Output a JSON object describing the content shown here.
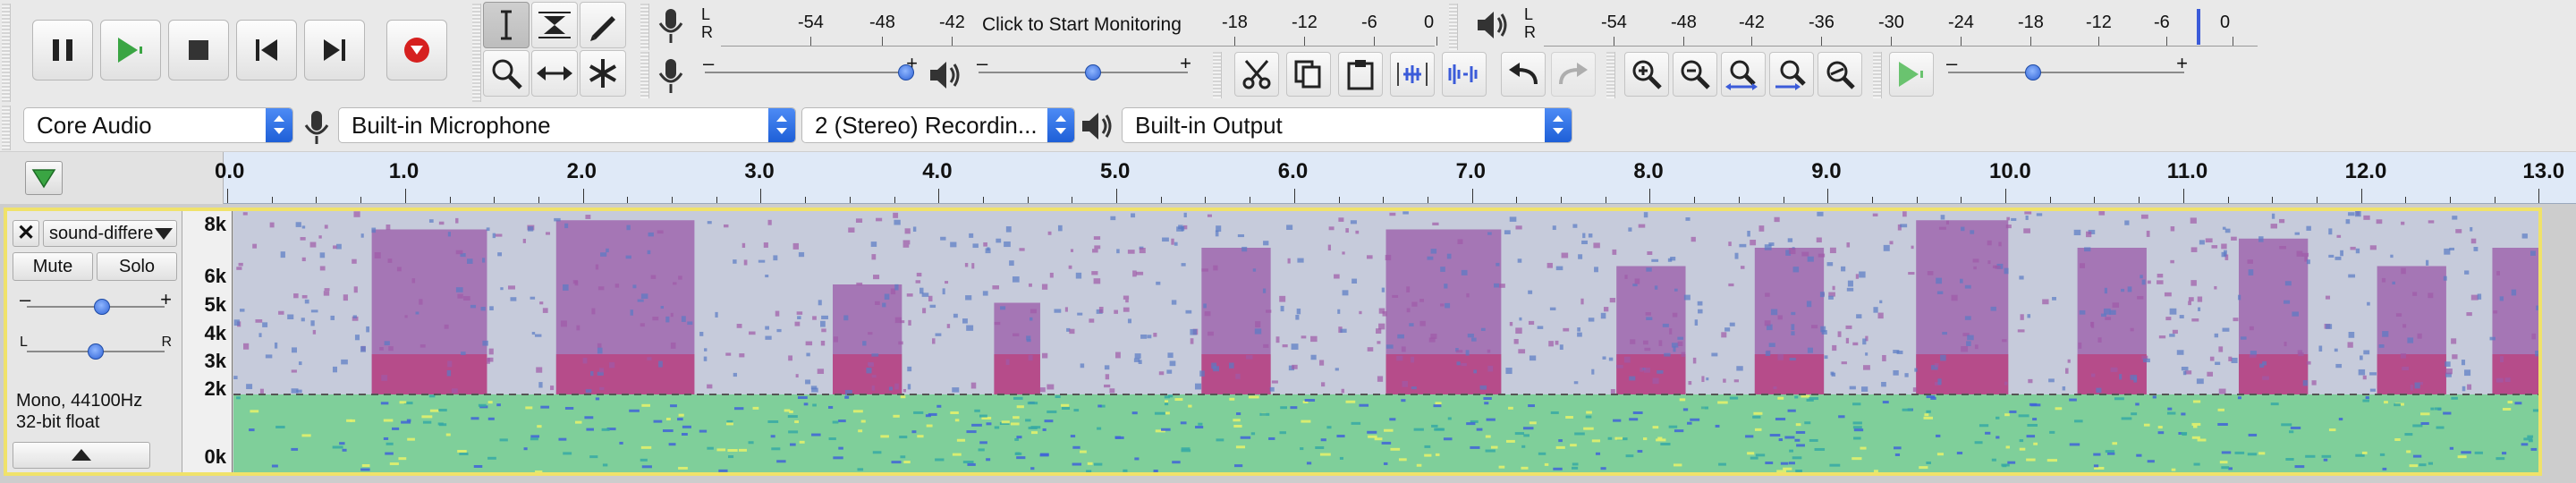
{
  "transport": {
    "buttons": [
      {
        "name": "pause-button",
        "icon": "pause-icon"
      },
      {
        "name": "play-button",
        "icon": "play-icon"
      },
      {
        "name": "stop-button",
        "icon": "stop-icon"
      },
      {
        "name": "skip-start-button",
        "icon": "skip-start-icon"
      },
      {
        "name": "skip-end-button",
        "icon": "skip-end-icon"
      },
      {
        "name": "record-button",
        "icon": "record-icon"
      }
    ]
  },
  "tools": [
    "selection-tool",
    "envelope-tool",
    "draw-tool",
    "zoom-tool",
    "time-shift-tool",
    "multi-tool"
  ],
  "record_meter": {
    "left_label": "L",
    "right_label": "R",
    "ticks": [
      "-54",
      "-48",
      "-42",
      "-18",
      "-12",
      "-6",
      "0"
    ],
    "monitor_text": "Click to Start Monitoring"
  },
  "playback_meter": {
    "left_label": "L",
    "right_label": "R",
    "ticks": [
      "-54",
      "-48",
      "-42",
      "-36",
      "-30",
      "-24",
      "-18",
      "-12",
      "-6",
      "0"
    ]
  },
  "mixer": {
    "record_volume_min": "–",
    "record_volume_max": "+",
    "record_volume_level": 1.0,
    "playback_volume_min": "–",
    "playback_volume_max": "+",
    "playback_volume_level": 0.55
  },
  "play_at_speed": {
    "min": "–",
    "max": "+",
    "level": 0.35
  },
  "device": {
    "host": "Core Audio",
    "input": "Built-in Microphone",
    "channels": "2 (Stereo) Recordin...",
    "output": "Built-in Output"
  },
  "timeline": {
    "labels": [
      "0.0",
      "1.0",
      "2.0",
      "3.0",
      "4.0",
      "5.0",
      "6.0",
      "7.0",
      "8.0",
      "9.0",
      "10.0",
      "11.0",
      "12.0",
      "13.0"
    ]
  },
  "track": {
    "name": "sound-differe",
    "mute_label": "Mute",
    "solo_label": "Solo",
    "gain_min": "–",
    "gain_max": "+",
    "gain_level": 0.55,
    "pan_left": "L",
    "pan_right": "R",
    "pan_level": 0.5,
    "info_line1": "Mono, 44100Hz",
    "info_line2": "32-bit float",
    "freq_labels": [
      "8k",
      "6k",
      "5k",
      "4k",
      "3k",
      "2k",
      "0k"
    ]
  },
  "colors": {
    "accent": "#2f63d6",
    "record": "#d6201f",
    "play": "#3aa543",
    "track_border": "#f0e26a"
  }
}
